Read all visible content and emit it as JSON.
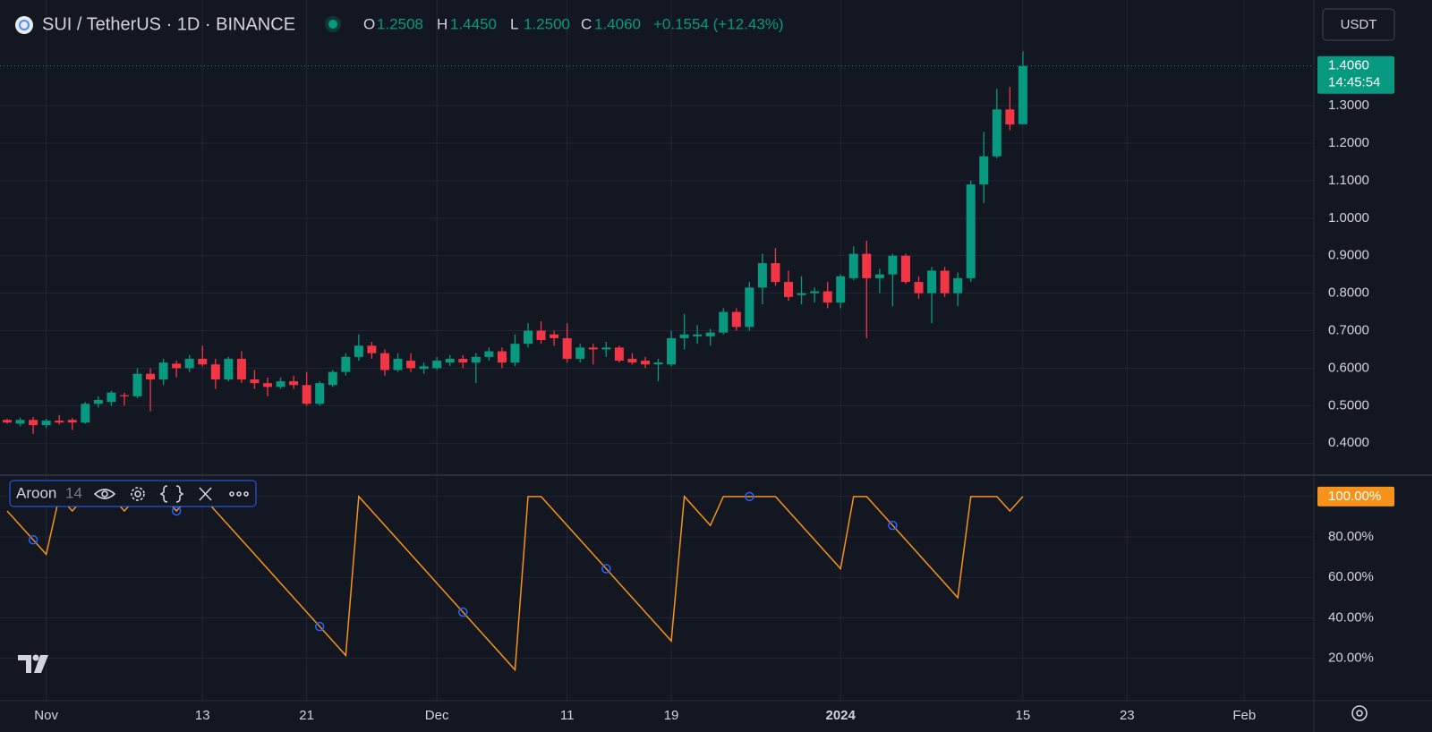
{
  "header": {
    "symbol": "SUI / TetherUS · 1D · BINANCE",
    "ohlc": [
      {
        "key": "O",
        "value": "1.2508"
      },
      {
        "key": "H",
        "value": "1.4450"
      },
      {
        "key": "L",
        "value": "1.2500"
      },
      {
        "key": "C",
        "value": "1.4060"
      }
    ],
    "change": "+0.1554 (+12.43%)",
    "currency": "USDT"
  },
  "chart_data": [
    {
      "type": "candlestick",
      "up_color": "#089981",
      "down_color": "#f23645",
      "grid": true,
      "x": [
        "Oct 29",
        "Oct 30",
        "Oct 31",
        "Nov 1",
        "Nov 2",
        "Nov 3",
        "Nov 4",
        "Nov 5",
        "Nov 6",
        "Nov 7",
        "Nov 8",
        "Nov 9",
        "Nov 10",
        "Nov 11",
        "Nov 12",
        "Nov 13",
        "Nov 14",
        "Nov 15",
        "Nov 16",
        "Nov 17",
        "Nov 18",
        "Nov 19",
        "Nov 20",
        "Nov 21",
        "Nov 22",
        "Nov 23",
        "Nov 24",
        "Nov 25",
        "Nov 26",
        "Nov 27",
        "Nov 28",
        "Nov 29",
        "Nov 30",
        "Dec 1",
        "Dec 2",
        "Dec 3",
        "Dec 4",
        "Dec 5",
        "Dec 6",
        "Dec 7",
        "Dec 8",
        "Dec 9",
        "Dec 10",
        "Dec 11",
        "Dec 12",
        "Dec 13",
        "Dec 14",
        "Dec 15",
        "Dec 16",
        "Dec 17",
        "Dec 18",
        "Dec 19",
        "Dec 20",
        "Dec 21",
        "Dec 22",
        "Dec 23",
        "Dec 24",
        "Dec 25",
        "Dec 26",
        "Dec 27",
        "Dec 28",
        "Dec 29",
        "Dec 30",
        "Dec 31",
        "Jan 1",
        "Jan 2",
        "Jan 3",
        "Jan 4",
        "Jan 5",
        "Jan 6",
        "Jan 7",
        "Jan 8",
        "Jan 9",
        "Jan 10",
        "Jan 11",
        "Jan 12",
        "Jan 13",
        "Jan 14",
        "Jan 15"
      ],
      "open": [
        0.462,
        0.452,
        0.462,
        0.448,
        0.46,
        0.462,
        0.455,
        0.505,
        0.51,
        0.528,
        0.525,
        0.585,
        0.57,
        0.612,
        0.6,
        0.625,
        0.61,
        0.57,
        0.625,
        0.57,
        0.56,
        0.55,
        0.565,
        0.555,
        0.505,
        0.555,
        0.59,
        0.63,
        0.66,
        0.64,
        0.595,
        0.62,
        0.598,
        0.6,
        0.615,
        0.625,
        0.615,
        0.63,
        0.645,
        0.615,
        0.665,
        0.7,
        0.69,
        0.68,
        0.625,
        0.655,
        0.65,
        0.655,
        0.625,
        0.62,
        0.61,
        0.61,
        0.68,
        0.685,
        0.685,
        0.695,
        0.75,
        0.71,
        0.815,
        0.88,
        0.83,
        0.795,
        0.8,
        0.805,
        0.775,
        0.84,
        0.905,
        0.84,
        0.85,
        0.9,
        0.83,
        0.8,
        0.86,
        0.8,
        0.84,
        1.09,
        1.165,
        1.29,
        1.2508
      ],
      "high": [
        0.465,
        0.468,
        0.47,
        0.465,
        0.475,
        0.467,
        0.51,
        0.525,
        0.54,
        0.535,
        0.6,
        0.6,
        0.625,
        0.62,
        0.635,
        0.66,
        0.625,
        0.63,
        0.645,
        0.595,
        0.575,
        0.575,
        0.58,
        0.59,
        0.565,
        0.595,
        0.64,
        0.69,
        0.67,
        0.65,
        0.64,
        0.64,
        0.615,
        0.63,
        0.635,
        0.635,
        0.64,
        0.655,
        0.655,
        0.69,
        0.72,
        0.725,
        0.7,
        0.72,
        0.665,
        0.665,
        0.67,
        0.66,
        0.64,
        0.63,
        0.625,
        0.7,
        0.745,
        0.715,
        0.705,
        0.76,
        0.76,
        0.83,
        0.905,
        0.92,
        0.86,
        0.845,
        0.815,
        0.83,
        0.85,
        0.925,
        0.94,
        0.865,
        0.905,
        0.905,
        0.845,
        0.87,
        0.87,
        0.855,
        1.1,
        1.23,
        1.345,
        1.35,
        1.445
      ],
      "low": [
        0.452,
        0.445,
        0.425,
        0.44,
        0.45,
        0.435,
        0.452,
        0.495,
        0.5,
        0.5,
        0.52,
        0.485,
        0.555,
        0.575,
        0.59,
        0.605,
        0.545,
        0.565,
        0.56,
        0.545,
        0.525,
        0.545,
        0.545,
        0.5,
        0.5,
        0.55,
        0.58,
        0.62,
        0.625,
        0.58,
        0.59,
        0.59,
        0.585,
        0.595,
        0.605,
        0.6,
        0.56,
        0.62,
        0.6,
        0.605,
        0.655,
        0.665,
        0.66,
        0.615,
        0.615,
        0.61,
        0.63,
        0.615,
        0.61,
        0.6,
        0.565,
        0.605,
        0.65,
        0.665,
        0.66,
        0.69,
        0.7,
        0.7,
        0.77,
        0.82,
        0.78,
        0.77,
        0.775,
        0.76,
        0.76,
        0.835,
        0.68,
        0.8,
        0.765,
        0.825,
        0.785,
        0.72,
        0.79,
        0.765,
        0.83,
        1.04,
        1.16,
        1.235,
        1.25
      ],
      "close": [
        0.455,
        0.462,
        0.448,
        0.46,
        0.455,
        0.455,
        0.505,
        0.515,
        0.535,
        0.525,
        0.585,
        0.57,
        0.615,
        0.6,
        0.625,
        0.61,
        0.57,
        0.625,
        0.57,
        0.56,
        0.55,
        0.565,
        0.555,
        0.505,
        0.56,
        0.59,
        0.63,
        0.66,
        0.64,
        0.595,
        0.625,
        0.6,
        0.605,
        0.62,
        0.625,
        0.615,
        0.63,
        0.645,
        0.615,
        0.665,
        0.7,
        0.675,
        0.68,
        0.625,
        0.655,
        0.65,
        0.655,
        0.62,
        0.615,
        0.61,
        0.615,
        0.68,
        0.69,
        0.69,
        0.695,
        0.75,
        0.71,
        0.815,
        0.88,
        0.83,
        0.79,
        0.8,
        0.805,
        0.775,
        0.845,
        0.905,
        0.84,
        0.85,
        0.9,
        0.83,
        0.8,
        0.86,
        0.8,
        0.84,
        1.09,
        1.165,
        1.29,
        1.25,
        1.406
      ],
      "last_price": {
        "value": 1.406,
        "label": "1.4060",
        "countdown": "14:45:54"
      },
      "xlim": [
        "Oct 29",
        "Feb 6"
      ],
      "xticks": [
        {
          "value": "Nov 1",
          "label": "Nov"
        },
        {
          "value": "Nov 13",
          "label": "13"
        },
        {
          "value": "Nov 21",
          "label": "21"
        },
        {
          "value": "Dec 1",
          "label": "Dec"
        },
        {
          "value": "Dec 11",
          "label": "11"
        },
        {
          "value": "Dec 19",
          "label": "19"
        },
        {
          "value": "Jan 1",
          "label": "2024"
        },
        {
          "value": "Jan 15",
          "label": "15"
        },
        {
          "value": "Jan 23",
          "label": "23"
        },
        {
          "value": "Feb 1",
          "label": "Feb"
        }
      ],
      "ylim": [
        0.317,
        1.57
      ],
      "yticks": [
        {
          "value": 0.4,
          "label": "0.4000"
        },
        {
          "value": 0.5,
          "label": "0.5000"
        },
        {
          "value": 0.6,
          "label": "0.6000"
        },
        {
          "value": 0.7,
          "label": "0.7000"
        },
        {
          "value": 0.8,
          "label": "0.8000"
        },
        {
          "value": 0.9,
          "label": "0.9000"
        },
        {
          "value": 1,
          "label": "1.0000"
        },
        {
          "value": 1.1,
          "label": "1.1000"
        },
        {
          "value": 1.2,
          "label": "1.2000"
        },
        {
          "value": 1.3,
          "label": "1.3000"
        }
      ]
    },
    {
      "type": "line",
      "title": "Aroon",
      "length": "14",
      "grid": true,
      "x": [
        "Oct 29",
        "Oct 30",
        "Oct 31",
        "Nov 1",
        "Nov 2",
        "Nov 3",
        "Nov 4",
        "Nov 5",
        "Nov 6",
        "Nov 7",
        "Nov 8",
        "Nov 9",
        "Nov 10",
        "Nov 11",
        "Nov 12",
        "Nov 13",
        "Nov 14",
        "Nov 15",
        "Nov 16",
        "Nov 17",
        "Nov 18",
        "Nov 19",
        "Nov 20",
        "Nov 21",
        "Nov 22",
        "Nov 23",
        "Nov 24",
        "Nov 25",
        "Nov 26",
        "Nov 27",
        "Nov 28",
        "Nov 29",
        "Nov 30",
        "Dec 1",
        "Dec 2",
        "Dec 3",
        "Dec 4",
        "Dec 5",
        "Dec 6",
        "Dec 7",
        "Dec 8",
        "Dec 9",
        "Dec 10",
        "Dec 11",
        "Dec 12",
        "Dec 13",
        "Dec 14",
        "Dec 15",
        "Dec 16",
        "Dec 17",
        "Dec 18",
        "Dec 19",
        "Dec 20",
        "Dec 21",
        "Dec 22",
        "Dec 23",
        "Dec 24",
        "Dec 25",
        "Dec 26",
        "Dec 27",
        "Dec 28",
        "Dec 29",
        "Dec 30",
        "Dec 31",
        "Jan 1",
        "Jan 2",
        "Jan 3",
        "Jan 4",
        "Jan 5",
        "Jan 6",
        "Jan 7",
        "Jan 8",
        "Jan 9",
        "Jan 10",
        "Jan 11",
        "Jan 12",
        "Jan 13",
        "Jan 14",
        "Jan 15"
      ],
      "series": [
        {
          "color": "#f7931a",
          "values": [
            92.86,
            85.71,
            78.57,
            71.43,
            100,
            92.86,
            100,
            100,
            100,
            92.86,
            100,
            100,
            100,
            92.86,
            100,
            100,
            92.86,
            85.71,
            78.57,
            71.43,
            64.29,
            57.14,
            50,
            42.86,
            35.71,
            28.57,
            21.43,
            100,
            92.86,
            85.71,
            78.57,
            71.43,
            64.29,
            57.14,
            50,
            42.86,
            35.71,
            28.57,
            21.43,
            14.29,
            100,
            100,
            92.86,
            85.71,
            78.57,
            71.43,
            64.29,
            57.14,
            50,
            42.86,
            35.71,
            28.57,
            100,
            92.86,
            85.71,
            100,
            100,
            100,
            100,
            100,
            92.86,
            85.71,
            78.57,
            71.43,
            64.29,
            100,
            100,
            92.86,
            85.71,
            78.57,
            71.43,
            64.29,
            57.14,
            50,
            100,
            100,
            100,
            92.86,
            100
          ]
        },
        {
          "color": "#2962ff",
          "values": [
            null,
            null,
            78.57,
            null,
            null,
            null,
            null,
            null,
            null,
            null,
            null,
            null,
            null,
            92.86,
            null,
            null,
            null,
            null,
            null,
            null,
            null,
            null,
            null,
            null,
            35.71,
            null,
            null,
            null,
            null,
            null,
            null,
            null,
            null,
            null,
            null,
            42.86,
            null,
            null,
            null,
            null,
            null,
            null,
            null,
            null,
            null,
            null,
            64.29,
            null,
            null,
            null,
            null,
            null,
            null,
            null,
            null,
            null,
            null,
            100,
            null,
            null,
            null,
            null,
            null,
            null,
            null,
            null,
            null,
            null,
            85.71,
            null,
            null,
            null,
            null,
            null,
            null,
            null,
            null,
            null,
            null
          ]
        }
      ],
      "last_label": {
        "value": 100,
        "label": "100.00%"
      },
      "ylim": [
        2.6,
        110.1
      ],
      "yticks": [
        {
          "value": 20,
          "label": "20.00%"
        },
        {
          "value": 40,
          "label": "40.00%"
        },
        {
          "value": 60,
          "label": "60.00%"
        },
        {
          "value": 80,
          "label": "80.00%"
        },
        {
          "value": 100,
          "label": "100.00%"
        }
      ]
    }
  ]
}
